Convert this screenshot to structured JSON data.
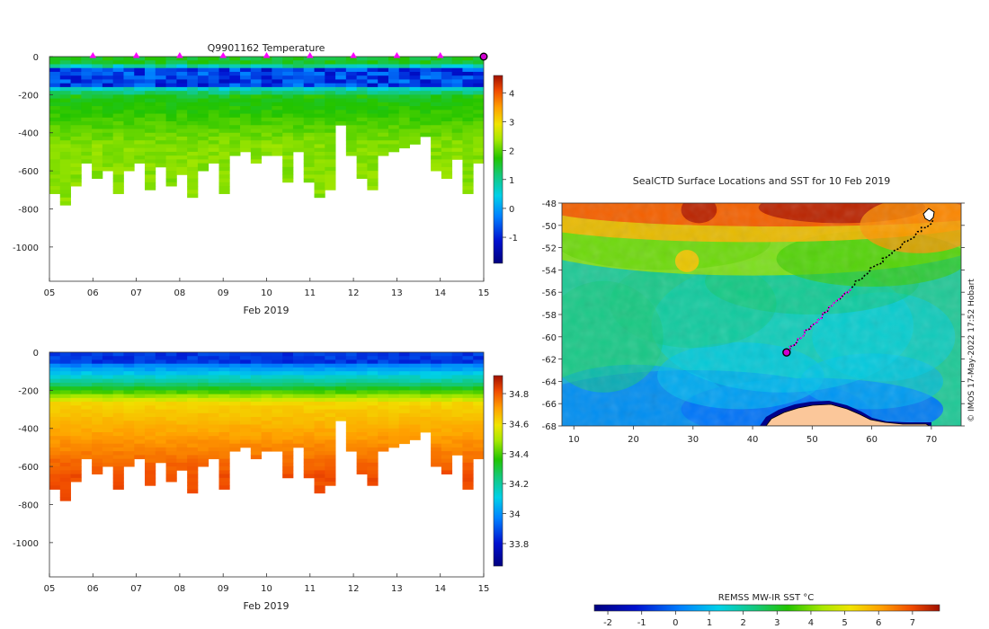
{
  "chart_data": [
    {
      "id": "temperature",
      "type": "heatmap",
      "title": "Q9901162  Temperature",
      "xlabel": "Feb 2019",
      "x_ticks": [
        "05",
        "06",
        "07",
        "08",
        "09",
        "10",
        "11",
        "12",
        "13",
        "14",
        "15"
      ],
      "y_ticks": [
        0,
        -200,
        -400,
        -600,
        -800,
        -1000
      ],
      "ylim": [
        -1180,
        0
      ],
      "x_range_days": [
        5,
        15
      ],
      "surface_markers_days": [
        6,
        7,
        8,
        9,
        10,
        11,
        12,
        13,
        14
      ],
      "last_profile_day": 15,
      "colorbar": {
        "min": -1.9,
        "max": 4.6,
        "ticks": [
          -1,
          0,
          1,
          2,
          3,
          4
        ]
      },
      "profile_max_depth": [
        720,
        780,
        680,
        560,
        630,
        600,
        710,
        600,
        560,
        700,
        580,
        670,
        610,
        740,
        600,
        560,
        710,
        520,
        500,
        550,
        520,
        510,
        660,
        500,
        650,
        730,
        690,
        360,
        520,
        630,
        690,
        520,
        500,
        480,
        460,
        410,
        590,
        640,
        530,
        710,
        550
      ]
    },
    {
      "id": "salinity",
      "type": "heatmap",
      "xlabel": "Feb 2019",
      "x_ticks": [
        "05",
        "06",
        "07",
        "08",
        "09",
        "10",
        "11",
        "12",
        "13",
        "14",
        "15"
      ],
      "y_ticks": [
        0,
        -200,
        -400,
        -600,
        -800,
        -1000
      ],
      "ylim": [
        -1180,
        0
      ],
      "x_range_days": [
        5,
        15
      ],
      "colorbar": {
        "min": 33.65,
        "max": 34.92,
        "ticks": [
          33.8,
          34,
          34.2,
          34.4,
          34.6,
          34.8
        ]
      }
    },
    {
      "id": "sst_map",
      "type": "heatmap",
      "title": "SealCTD Surface Locations and SST for 10 Feb 2019",
      "x_ticks": [
        10,
        20,
        30,
        40,
        50,
        60,
        70
      ],
      "y_ticks": [
        -48,
        -50,
        -52,
        -54,
        -56,
        -58,
        -60,
        -62,
        -64,
        -66,
        -68
      ],
      "xlim": [
        8,
        75
      ],
      "ylim": [
        -68,
        -48
      ],
      "colorbar_label": "REMSS MW-IR SST °C",
      "colorbar": {
        "min": -2.4,
        "max": 7.8,
        "ticks": [
          -2,
          -1,
          0,
          1,
          2,
          3,
          4,
          5,
          6,
          7
        ]
      },
      "track_start": {
        "lon": 70.2,
        "lat": -49.6
      },
      "track_end": {
        "lon": 45.7,
        "lat": -61.4
      },
      "credit": "© IMOS 17-May-2022 17:52 Hobart"
    }
  ]
}
